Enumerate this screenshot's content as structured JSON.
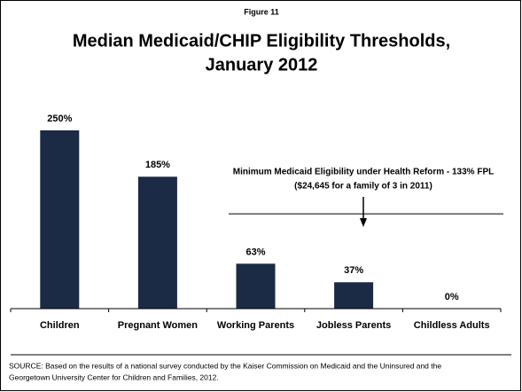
{
  "chart_data": {
    "type": "bar",
    "figure_label": "Figure 11",
    "title": [
      "Median Medicaid/CHIP Eligibility Thresholds,",
      "January 2012"
    ],
    "categories": [
      "Children",
      "Pregnant Women",
      "Working Parents",
      "Jobless Parents",
      "Childless Adults"
    ],
    "values": [
      250,
      185,
      63,
      37,
      0
    ],
    "value_labels": [
      "250%",
      "185%",
      "63%",
      "37%",
      "0%"
    ],
    "color": "#1b2a45",
    "ylim": [
      0,
      250
    ],
    "reference_line": 133,
    "annotation": [
      "Minimum Medicaid Eligibility under Health Reform - 133% FPL",
      "($24,645 for a family of 3 in 2011)"
    ],
    "source": [
      "SOURCE: Based on the results of a national survey conducted by the Kaiser Commission on Medicaid and the Uninsured and the",
      "Georgetown University Center for Children and Families, 2012."
    ]
  }
}
